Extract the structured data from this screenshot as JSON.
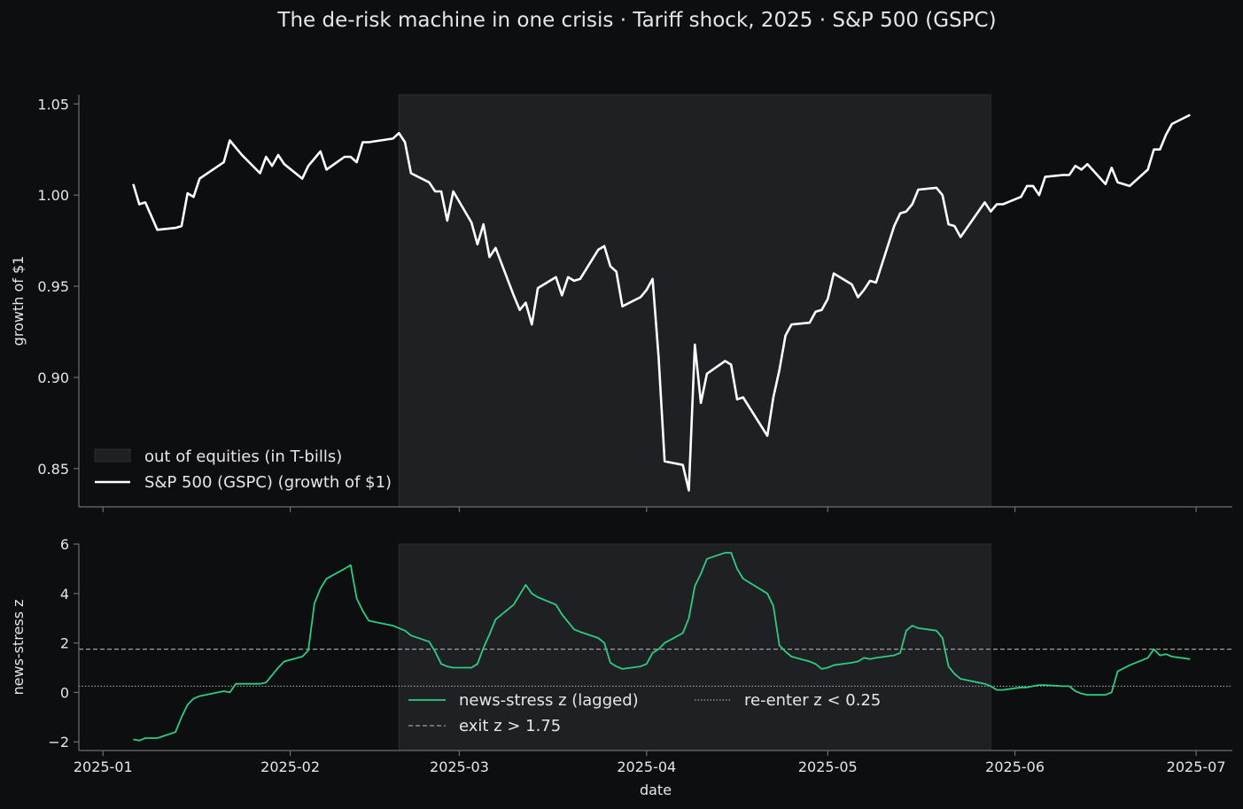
{
  "figure": {
    "title": "The de-risk machine in one crisis  ·  Tariff shock, 2025  ·  S&P 500 (GSPC)",
    "background": "#0d0e10",
    "axes_color": "#6e6e73",
    "text_color": "#e6e6e6"
  },
  "chart_data": [
    {
      "type": "line",
      "panel": "top",
      "ylabel": "growth of $1",
      "xlabel": "",
      "ylim": [
        0.829,
        1.055
      ],
      "yticks": [
        0.85,
        0.9,
        0.95,
        1.0,
        1.05
      ],
      "ytick_labels": [
        "0.85",
        "0.90",
        "0.95",
        "1.00",
        "1.05"
      ],
      "xlim": [
        "2024-12-28",
        "2025-07-07"
      ],
      "shaded_period": {
        "start": "2025-02-19",
        "end": "2025-05-28",
        "color": "#1f2023",
        "label": "out of equities (in T-bills)"
      },
      "legend_position": "lower-left",
      "series": [
        {
          "name": "S&P 500 (GSPC) (growth of $1)",
          "color": "#ffffff",
          "x": [
            "2025-01-06",
            "2025-01-07",
            "2025-01-08",
            "2025-01-10",
            "2025-01-13",
            "2025-01-14",
            "2025-01-15",
            "2025-01-16",
            "2025-01-17",
            "2025-01-21",
            "2025-01-22",
            "2025-01-23",
            "2025-01-24",
            "2025-01-27",
            "2025-01-28",
            "2025-01-29",
            "2025-01-30",
            "2025-01-31",
            "2025-02-03",
            "2025-02-04",
            "2025-02-05",
            "2025-02-06",
            "2025-02-07",
            "2025-02-10",
            "2025-02-11",
            "2025-02-12",
            "2025-02-13",
            "2025-02-14",
            "2025-02-18",
            "2025-02-19",
            "2025-02-20",
            "2025-02-21",
            "2025-02-24",
            "2025-02-25",
            "2025-02-26",
            "2025-02-27",
            "2025-02-28",
            "2025-03-03",
            "2025-03-04",
            "2025-03-05",
            "2025-03-06",
            "2025-03-07",
            "2025-03-10",
            "2025-03-11",
            "2025-03-12",
            "2025-03-13",
            "2025-03-14",
            "2025-03-17",
            "2025-03-18",
            "2025-03-19",
            "2025-03-20",
            "2025-03-21",
            "2025-03-24",
            "2025-03-25",
            "2025-03-26",
            "2025-03-27",
            "2025-03-28",
            "2025-03-31",
            "2025-04-01",
            "2025-04-02",
            "2025-04-03",
            "2025-04-04",
            "2025-04-07",
            "2025-04-08",
            "2025-04-09",
            "2025-04-10",
            "2025-04-11",
            "2025-04-14",
            "2025-04-15",
            "2025-04-16",
            "2025-04-17",
            "2025-04-21",
            "2025-04-22",
            "2025-04-23",
            "2025-04-24",
            "2025-04-25",
            "2025-04-28",
            "2025-04-29",
            "2025-04-30",
            "2025-05-01",
            "2025-05-02",
            "2025-05-05",
            "2025-05-06",
            "2025-05-07",
            "2025-05-08",
            "2025-05-09",
            "2025-05-12",
            "2025-05-13",
            "2025-05-14",
            "2025-05-15",
            "2025-05-16",
            "2025-05-19",
            "2025-05-20",
            "2025-05-21",
            "2025-05-22",
            "2025-05-23",
            "2025-05-27",
            "2025-05-28",
            "2025-05-29",
            "2025-05-30",
            "2025-06-02",
            "2025-06-03",
            "2025-06-04",
            "2025-06-05",
            "2025-06-06",
            "2025-06-09",
            "2025-06-10",
            "2025-06-11",
            "2025-06-12",
            "2025-06-13",
            "2025-06-16",
            "2025-06-17",
            "2025-06-18",
            "2025-06-20",
            "2025-06-23",
            "2025-06-24",
            "2025-06-25",
            "2025-06-26",
            "2025-06-27",
            "2025-06-30"
          ],
          "y": [
            1.006,
            0.995,
            0.996,
            0.981,
            0.982,
            0.983,
            1.001,
            0.999,
            1.009,
            1.018,
            1.03,
            1.026,
            1.022,
            1.012,
            1.021,
            1.016,
            1.022,
            1.017,
            1.009,
            1.016,
            1.02,
            1.024,
            1.014,
            1.021,
            1.021,
            1.018,
            1.029,
            1.029,
            1.031,
            1.034,
            1.029,
            1.012,
            1.007,
            1.002,
            1.002,
            0.986,
            1.002,
            0.985,
            0.973,
            0.984,
            0.966,
            0.971,
            0.945,
            0.937,
            0.941,
            0.929,
            0.949,
            0.955,
            0.945,
            0.955,
            0.953,
            0.954,
            0.97,
            0.972,
            0.961,
            0.958,
            0.939,
            0.944,
            0.948,
            0.954,
            0.911,
            0.854,
            0.852,
            0.838,
            0.918,
            0.886,
            0.902,
            0.909,
            0.907,
            0.888,
            0.889,
            0.868,
            0.889,
            0.904,
            0.923,
            0.929,
            0.93,
            0.936,
            0.937,
            0.943,
            0.957,
            0.951,
            0.944,
            0.948,
            0.953,
            0.952,
            0.983,
            0.99,
            0.991,
            0.995,
            1.003,
            1.004,
            1.0,
            0.984,
            0.983,
            0.977,
            0.996,
            0.991,
            0.995,
            0.995,
            0.999,
            1.005,
            1.005,
            1.0,
            1.01,
            1.011,
            1.011,
            1.016,
            1.014,
            1.017,
            1.006,
            1.015,
            1.007,
            1.005,
            1.014,
            1.025,
            1.025,
            1.033,
            1.039,
            1.044
          ]
        }
      ]
    },
    {
      "type": "line",
      "panel": "bottom",
      "ylabel": "news-stress z",
      "xlabel": "date",
      "ylim": [
        -2.35,
        6.0
      ],
      "yticks": [
        -2,
        0,
        2,
        4,
        6
      ],
      "ytick_labels": [
        "−2",
        "0",
        "2",
        "4",
        "6"
      ],
      "xlim": [
        "2024-12-28",
        "2025-07-07"
      ],
      "xticks": [
        "2025-01-01",
        "2025-02-01",
        "2025-03-01",
        "2025-04-01",
        "2025-05-01",
        "2025-06-01",
        "2025-07-01"
      ],
      "xtick_labels": [
        "2025-01",
        "2025-02",
        "2025-03",
        "2025-04",
        "2025-05",
        "2025-06",
        "2025-07"
      ],
      "shaded_period": {
        "start": "2025-02-19",
        "end": "2025-05-28",
        "color": "#1f2023"
      },
      "legend_position": "lower-center",
      "reference_lines": [
        {
          "name": "exit  z > 1.75",
          "y": 1.75,
          "style": "dashed",
          "color": "#a0a0a0"
        },
        {
          "name": "re-enter  z < 0.25",
          "y": 0.25,
          "style": "dotted",
          "color": "#a0a0a0"
        }
      ],
      "series": [
        {
          "name": "news-stress z (lagged)",
          "color": "#2ecc80",
          "x": [
            "2025-01-06",
            "2025-01-07",
            "2025-01-08",
            "2025-01-10",
            "2025-01-13",
            "2025-01-14",
            "2025-01-15",
            "2025-01-16",
            "2025-01-17",
            "2025-01-21",
            "2025-01-22",
            "2025-01-23",
            "2025-01-24",
            "2025-01-27",
            "2025-01-28",
            "2025-01-29",
            "2025-01-30",
            "2025-01-31",
            "2025-02-03",
            "2025-02-04",
            "2025-02-05",
            "2025-02-06",
            "2025-02-07",
            "2025-02-10",
            "2025-02-11",
            "2025-02-12",
            "2025-02-13",
            "2025-02-14",
            "2025-02-18",
            "2025-02-19",
            "2025-02-20",
            "2025-02-21",
            "2025-02-24",
            "2025-02-25",
            "2025-02-26",
            "2025-02-27",
            "2025-02-28",
            "2025-03-03",
            "2025-03-04",
            "2025-03-05",
            "2025-03-06",
            "2025-03-07",
            "2025-03-10",
            "2025-03-11",
            "2025-03-12",
            "2025-03-13",
            "2025-03-14",
            "2025-03-17",
            "2025-03-18",
            "2025-03-19",
            "2025-03-20",
            "2025-03-21",
            "2025-03-24",
            "2025-03-25",
            "2025-03-26",
            "2025-03-27",
            "2025-03-28",
            "2025-03-31",
            "2025-04-01",
            "2025-04-02",
            "2025-04-03",
            "2025-04-04",
            "2025-04-07",
            "2025-04-08",
            "2025-04-09",
            "2025-04-10",
            "2025-04-11",
            "2025-04-14",
            "2025-04-15",
            "2025-04-16",
            "2025-04-17",
            "2025-04-21",
            "2025-04-22",
            "2025-04-23",
            "2025-04-24",
            "2025-04-25",
            "2025-04-28",
            "2025-04-29",
            "2025-04-30",
            "2025-05-01",
            "2025-05-02",
            "2025-05-05",
            "2025-05-06",
            "2025-05-07",
            "2025-05-08",
            "2025-05-09",
            "2025-05-12",
            "2025-05-13",
            "2025-05-14",
            "2025-05-15",
            "2025-05-16",
            "2025-05-19",
            "2025-05-20",
            "2025-05-21",
            "2025-05-22",
            "2025-05-23",
            "2025-05-27",
            "2025-05-28",
            "2025-05-29",
            "2025-05-30",
            "2025-06-02",
            "2025-06-03",
            "2025-06-04",
            "2025-06-05",
            "2025-06-06",
            "2025-06-09",
            "2025-06-10",
            "2025-06-11",
            "2025-06-12",
            "2025-06-13",
            "2025-06-16",
            "2025-06-17",
            "2025-06-18",
            "2025-06-20",
            "2025-06-23",
            "2025-06-24",
            "2025-06-25",
            "2025-06-26",
            "2025-06-27",
            "2025-06-30"
          ],
          "y": [
            -1.9,
            -1.95,
            -1.85,
            -1.85,
            -1.6,
            -1.0,
            -0.5,
            -0.25,
            -0.15,
            0.05,
            0.0,
            0.35,
            0.35,
            0.35,
            0.4,
            0.7,
            1.0,
            1.25,
            1.45,
            1.7,
            3.6,
            4.2,
            4.6,
            5.0,
            5.15,
            3.8,
            3.3,
            2.9,
            2.7,
            2.6,
            2.5,
            2.3,
            2.05,
            1.65,
            1.15,
            1.05,
            1.0,
            1.0,
            1.15,
            1.8,
            2.35,
            2.95,
            3.55,
            3.95,
            4.35,
            4.0,
            3.85,
            3.55,
            3.15,
            2.85,
            2.55,
            2.45,
            2.2,
            2.0,
            1.2,
            1.05,
            0.95,
            1.05,
            1.15,
            1.6,
            1.75,
            2.0,
            2.4,
            3.0,
            4.3,
            4.8,
            5.4,
            5.65,
            5.65,
            5.0,
            4.6,
            4.0,
            3.5,
            1.9,
            1.65,
            1.45,
            1.25,
            1.15,
            0.95,
            1.0,
            1.1,
            1.2,
            1.25,
            1.4,
            1.35,
            1.4,
            1.5,
            1.6,
            2.5,
            2.7,
            2.6,
            2.5,
            2.2,
            1.05,
            0.75,
            0.55,
            0.35,
            0.25,
            0.1,
            0.1,
            0.2,
            0.2,
            0.25,
            0.3,
            0.3,
            0.25,
            0.25,
            0.05,
            -0.05,
            -0.1,
            -0.1,
            0.0,
            0.85,
            1.1,
            1.4,
            1.75,
            1.5,
            1.55,
            1.45,
            1.35
          ]
        }
      ]
    }
  ]
}
